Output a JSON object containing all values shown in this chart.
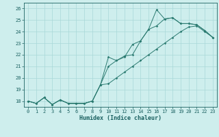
{
  "xlabel": "Humidex (Indice chaleur)",
  "x": [
    0,
    1,
    2,
    3,
    4,
    5,
    6,
    7,
    8,
    9,
    10,
    11,
    12,
    13,
    14,
    15,
    16,
    17,
    18,
    19,
    20,
    21,
    22,
    23
  ],
  "line_max": [
    18.0,
    17.8,
    18.3,
    17.7,
    18.1,
    17.8,
    17.8,
    17.8,
    18.0,
    19.4,
    21.8,
    21.5,
    21.8,
    22.9,
    23.2,
    24.2,
    25.9,
    25.1,
    25.2,
    24.7,
    24.7,
    24.6,
    24.1,
    23.5
  ],
  "line_mid": [
    18.0,
    17.8,
    18.3,
    17.7,
    18.1,
    17.8,
    17.8,
    17.8,
    18.0,
    19.4,
    21.0,
    21.5,
    21.9,
    22.0,
    23.2,
    24.2,
    24.5,
    25.1,
    25.2,
    24.7,
    24.7,
    24.6,
    24.1,
    23.5
  ],
  "line_min": [
    18.0,
    17.8,
    18.3,
    17.7,
    18.1,
    17.8,
    17.8,
    17.8,
    18.0,
    19.4,
    19.5,
    20.0,
    20.5,
    21.0,
    21.5,
    22.0,
    22.5,
    23.0,
    23.5,
    24.0,
    24.4,
    24.5,
    24.0,
    23.5
  ],
  "line_color": "#2a7a70",
  "bg_color": "#ceeeed",
  "grid_color": "#a8d8d8",
  "tick_color": "#1a6060",
  "ylim": [
    17.5,
    26.5
  ],
  "xlim": [
    -0.5,
    23.5
  ],
  "yticks": [
    18,
    19,
    20,
    21,
    22,
    23,
    24,
    25,
    26
  ]
}
